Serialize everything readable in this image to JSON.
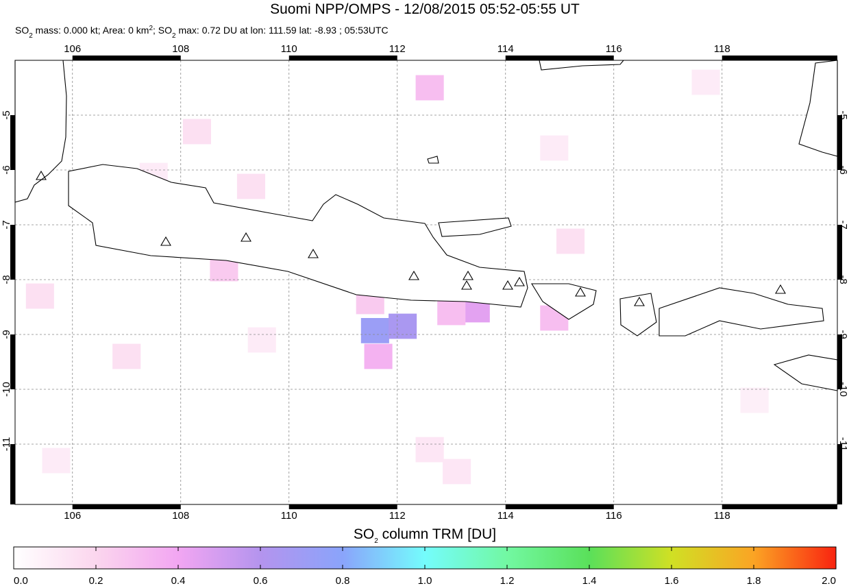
{
  "header": {
    "title": "Suomi NPP/OMPS - 12/08/2015 05:52-05:55 UT",
    "subtitle": [
      "SO",
      "2",
      " mass: 0.000 kt; Area: 0 km",
      "2",
      "; SO",
      "2",
      " max: 0.72 DU at lon: 111.59 lat: -8.93 ; 05:53UTC"
    ]
  },
  "map": {
    "xlim": [
      104.94,
      120.13
    ],
    "ylim": [
      -12.1,
      -4
    ],
    "xticks": [
      106,
      108,
      110,
      112,
      114,
      116,
      118
    ],
    "yticks": [
      -5,
      -6,
      -7,
      -8,
      -9,
      -10,
      -11
    ],
    "grid": true,
    "pixels": [
      {
        "lon": 111.59,
        "lat": -8.93,
        "value": 0.72
      },
      {
        "lon": 112.1,
        "lat": -8.85,
        "value": 0.65
      },
      {
        "lon": 111.65,
        "lat": -9.4,
        "value": 0.35
      },
      {
        "lon": 113.45,
        "lat": -8.55,
        "value": 0.45
      },
      {
        "lon": 112.6,
        "lat": -4.5,
        "value": 0.3
      },
      {
        "lon": 114.9,
        "lat": -8.7,
        "value": 0.3
      },
      {
        "lon": 108.8,
        "lat": -7.8,
        "value": 0.25
      },
      {
        "lon": 113.0,
        "lat": -8.6,
        "value": 0.3
      },
      {
        "lon": 111.5,
        "lat": -8.4,
        "value": 0.25
      },
      {
        "lon": 109.3,
        "lat": -6.3,
        "value": 0.15
      },
      {
        "lon": 108.3,
        "lat": -5.3,
        "value": 0.15
      },
      {
        "lon": 107.0,
        "lat": -9.4,
        "value": 0.15
      },
      {
        "lon": 105.4,
        "lat": -8.3,
        "value": 0.15
      },
      {
        "lon": 115.2,
        "lat": -7.3,
        "value": 0.15
      },
      {
        "lon": 112.6,
        "lat": -11.1,
        "value": 0.12
      },
      {
        "lon": 113.1,
        "lat": -11.5,
        "value": 0.12
      },
      {
        "lon": 117.7,
        "lat": -4.4,
        "value": 0.1
      },
      {
        "lon": 114.9,
        "lat": -5.6,
        "value": 0.1
      },
      {
        "lon": 109.5,
        "lat": -9.1,
        "value": 0.1
      },
      {
        "lon": 105.7,
        "lat": -11.3,
        "value": 0.1
      },
      {
        "lon": 107.5,
        "lat": -6.1,
        "value": 0.1
      },
      {
        "lon": 118.6,
        "lat": -10.2,
        "value": 0.08
      }
    ]
  },
  "colorbar": {
    "title": [
      "SO",
      "2",
      " column TRM [DU]"
    ],
    "lim": [
      0,
      2
    ],
    "ticks": [
      {
        "value": 0,
        "label": "0.0"
      },
      0.2,
      0.4,
      0.6,
      0.8,
      {
        "value": 1,
        "label": "1.0"
      },
      1.2,
      1.4,
      1.6,
      1.8,
      {
        "value": 2,
        "label": "2.0"
      }
    ]
  }
}
